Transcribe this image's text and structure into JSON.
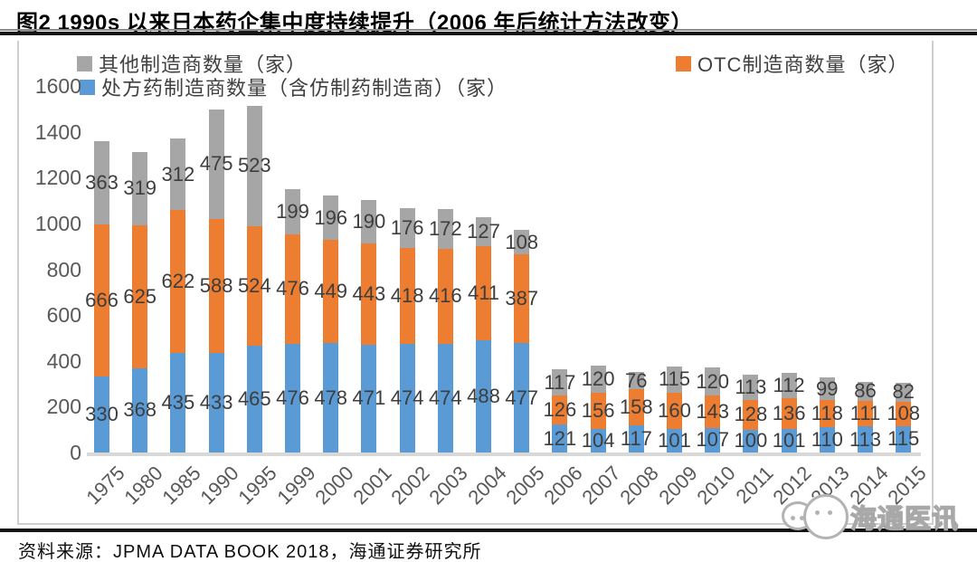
{
  "page": {
    "title": "图2  1990s 以来日本药企集中度持续提升（2006 年后统计方法改变）",
    "source_note": "资料来源：JPMA DATA BOOK 2018，海通证券研究所",
    "watermark_text": "海通医讯"
  },
  "colors": {
    "prescription": "#5B9BD5",
    "otc": "#ED7D31",
    "other": "#A6A6A6",
    "data_label": "#3D3D3D",
    "axis_label": "#595959",
    "axis_line": "#D8D8D8"
  },
  "chart_data": {
    "type": "bar",
    "stacked": true,
    "title": "1990s 以来日本药企集中度持续提升（2006 年后统计方法改变）",
    "categories": [
      "1975",
      "1980",
      "1985",
      "1990",
      "1995",
      "1999",
      "2000",
      "2001",
      "2002",
      "2003",
      "2004",
      "2005",
      "2006",
      "2007",
      "2008",
      "2009",
      "2010",
      "2011",
      "2012",
      "2013",
      "2014",
      "2015"
    ],
    "series": [
      {
        "name": "处方药制造商数量（含仿制药制造商）（家）",
        "color_key": "prescription",
        "values": [
          330,
          368,
          435,
          433,
          465,
          476,
          478,
          471,
          474,
          474,
          488,
          477,
          121,
          104,
          117,
          101,
          107,
          100,
          101,
          110,
          113,
          115
        ]
      },
      {
        "name": "OTC制造商数量（家）",
        "color_key": "otc",
        "values": [
          666,
          625,
          622,
          588,
          524,
          476,
          449,
          443,
          418,
          416,
          411,
          387,
          126,
          156,
          158,
          160,
          143,
          128,
          136,
          118,
          111,
          108
        ]
      },
      {
        "name": "其他制造商数量（家）",
        "color_key": "other",
        "values": [
          363,
          319,
          312,
          475,
          523,
          199,
          196,
          190,
          176,
          172,
          127,
          108,
          117,
          120,
          76,
          115,
          120,
          113,
          112,
          99,
          86,
          82
        ]
      }
    ],
    "legend": [
      {
        "label": "其他制造商数量（家）",
        "color_key": "other"
      },
      {
        "label": "OTC制造商数量（家）",
        "color_key": "otc"
      },
      {
        "label": "处方药制造商数量（含仿制药制造商）（家）",
        "color_key": "prescription"
      }
    ],
    "ylim": [
      0,
      1600
    ],
    "yticks": [
      0,
      200,
      400,
      600,
      800,
      1000,
      1200,
      1400,
      1600
    ],
    "grid": false,
    "legend_position": "top-inside",
    "data_labels": true,
    "xlabel": "",
    "ylabel": ""
  }
}
